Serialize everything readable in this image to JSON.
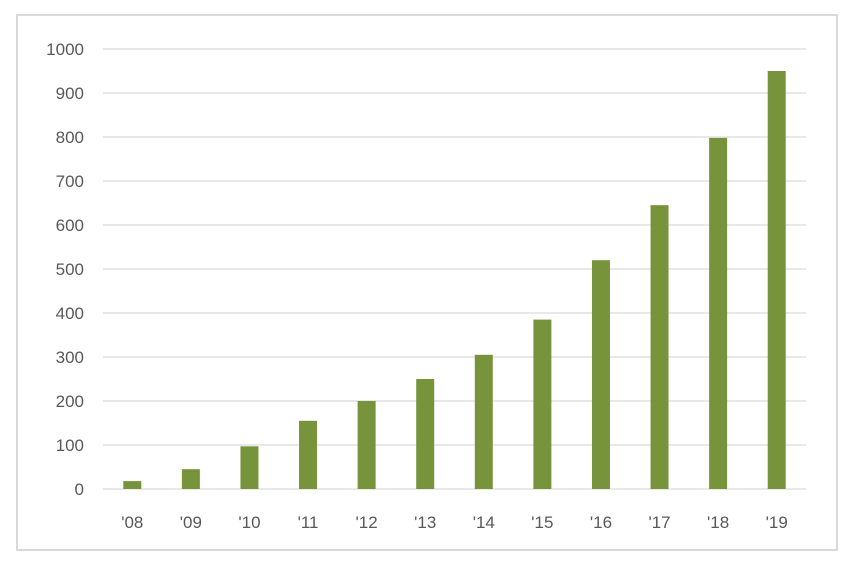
{
  "chart_data": {
    "type": "bar",
    "categories": [
      "'08",
      "'09",
      "'10",
      "'11",
      "'12",
      "'13",
      "'14",
      "'15",
      "'16",
      "'17",
      "'18",
      "'19"
    ],
    "values": [
      18,
      45,
      97,
      155,
      200,
      250,
      305,
      385,
      520,
      645,
      798,
      950
    ],
    "title": "",
    "xlabel": "",
    "ylabel": "",
    "ylim": [
      0,
      1000
    ],
    "yticks": [
      0,
      100,
      200,
      300,
      400,
      500,
      600,
      700,
      800,
      900,
      1000
    ],
    "grid": true,
    "legend": "none",
    "bar_color": "#77933c",
    "grid_color": "#d9d9d9"
  }
}
